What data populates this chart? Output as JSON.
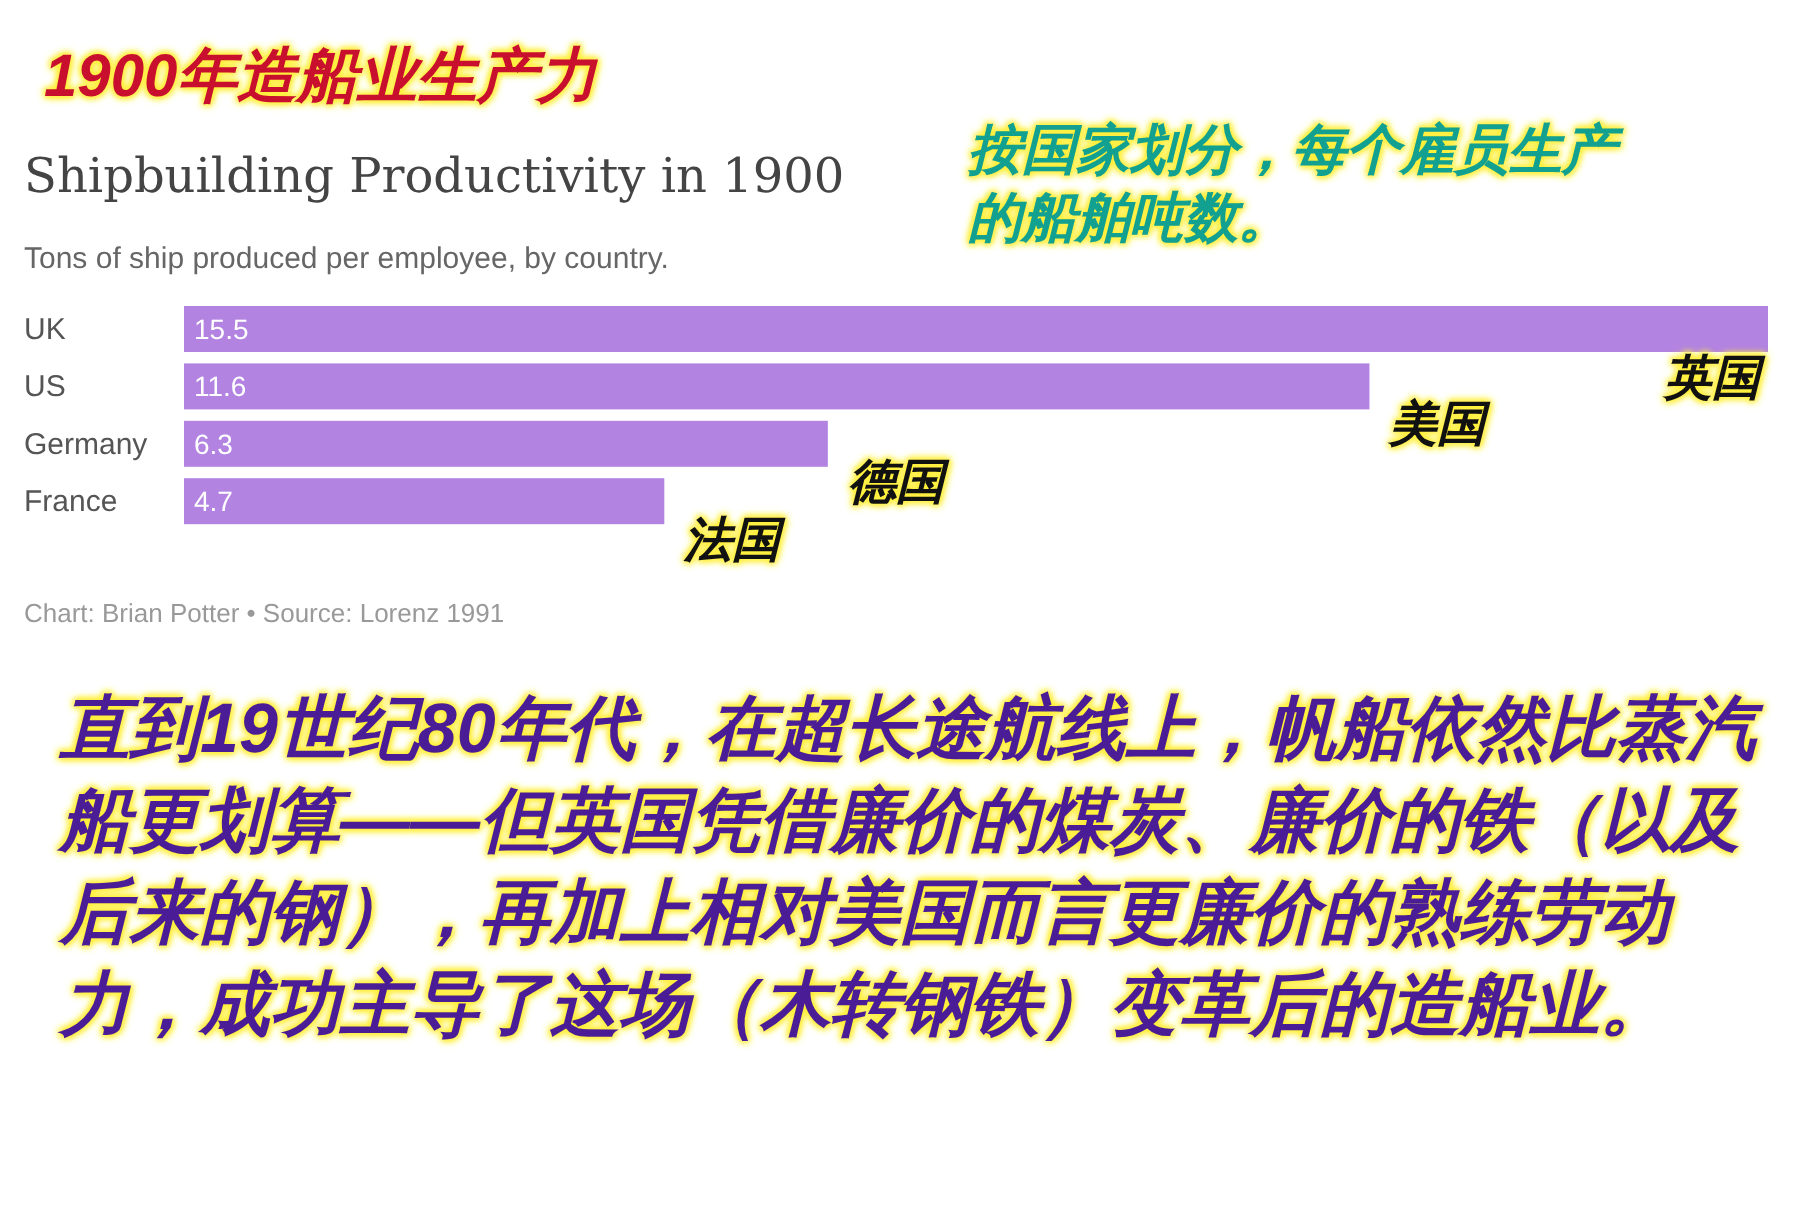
{
  "chart_data": {
    "type": "bar",
    "orientation": "horizontal",
    "title": "Shipbuilding Productivity in 1900",
    "subtitle": "Tons of ship produced per employee, by country.",
    "categories": [
      "UK",
      "US",
      "Germany",
      "France"
    ],
    "values": [
      15.5,
      11.6,
      6.3,
      4.7
    ],
    "color": "#b383e2",
    "data_labels": true,
    "annotations": [
      "1900年造船业生产力",
      "按国家划分，每个雇员生产的船舶吨数。",
      {
        "text": "英国",
        "x": 15.5,
        "y": "UK"
      },
      {
        "text": "美国",
        "x": 11.6,
        "y": "US"
      },
      {
        "text": "德国",
        "x": 6.3,
        "y": "Germany"
      },
      {
        "text": "法国",
        "x": 4.7,
        "y": "France"
      },
      "Chart: Brian Potter • Source: Lorenz 1991",
      "直到19世纪80年代，在超长途航线上，帆船依然比蒸汽船更划算——但英国凭借廉价的煤炭、廉价的铁（以及后来的钢），再加上相对美国而言更廉价的熟练劳动力，成功主导了这场（木转钢铁）变革后的造船业。"
    ]
  }
}
